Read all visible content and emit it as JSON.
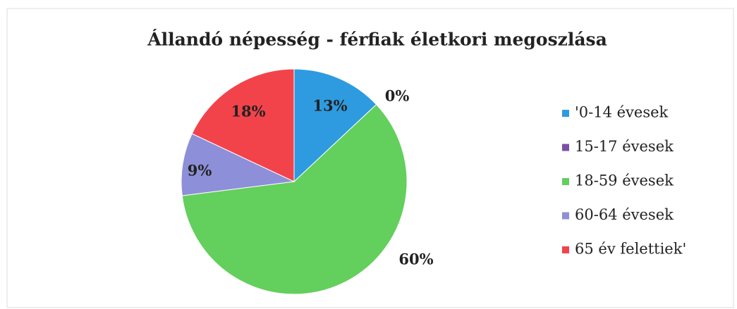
{
  "chart_data": {
    "type": "pie",
    "title": "Állandó népesség - férfiak életkori megoszlása",
    "categories": [
      "'0-14 évesek",
      "15-17 évesek",
      "18-59 évesek",
      "60-64 évesek",
      "65 év felettiek'"
    ],
    "values": [
      13,
      0,
      60,
      9,
      18
    ],
    "value_labels": [
      "13%",
      "0%",
      "60%",
      "9%",
      "18%"
    ],
    "colors": [
      "#2e9be0",
      "#7a4fa8",
      "#63cf5c",
      "#8d8fd8",
      "#f2434b"
    ],
    "legend": "right"
  }
}
